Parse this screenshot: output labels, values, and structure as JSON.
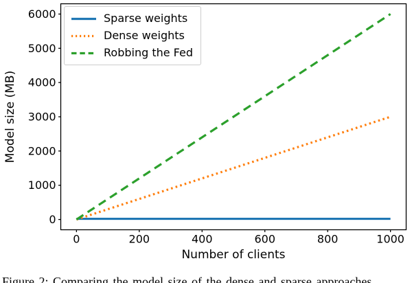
{
  "figure": {
    "caption": "Figure 2: Comparing the model size of the dense and sparse approaches"
  },
  "chart_data": {
    "type": "line",
    "title": "",
    "xlabel": "Number of clients",
    "ylabel": "Model size (MB)",
    "xlim": [
      0,
      1000
    ],
    "ylim": [
      0,
      6000
    ],
    "x_ticks": [
      0,
      200,
      400,
      600,
      800,
      1000
    ],
    "y_ticks": [
      0,
      1000,
      2000,
      3000,
      4000,
      5000,
      6000
    ],
    "grid": "off",
    "legend_position": "upper left",
    "series": [
      {
        "name": "Sparse weights",
        "color": "#1f77b4",
        "style": "solid",
        "x": [
          0,
          1000
        ],
        "y": [
          20,
          20
        ]
      },
      {
        "name": "Dense weights",
        "color": "#ff7f0e",
        "style": "dotted",
        "x": [
          0,
          1000
        ],
        "y": [
          0,
          3000
        ]
      },
      {
        "name": "Robbing the Fed",
        "color": "#2ca02c",
        "style": "dashed",
        "x": [
          0,
          1000
        ],
        "y": [
          0,
          6000
        ]
      }
    ]
  }
}
